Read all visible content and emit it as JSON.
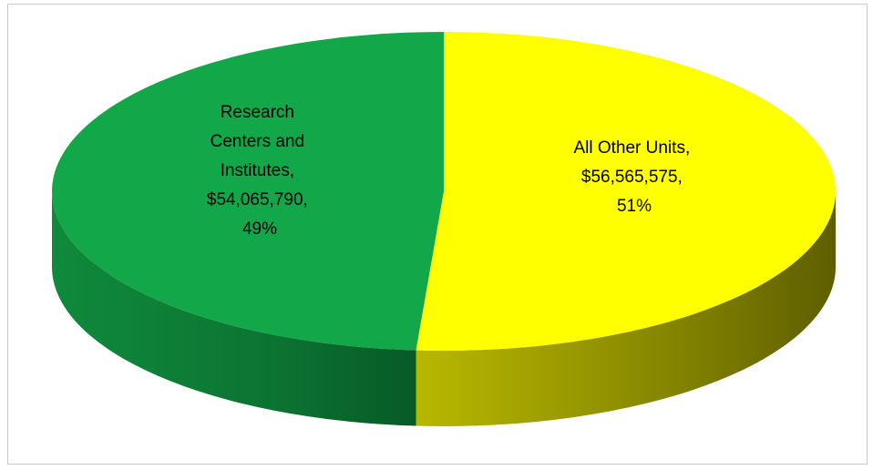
{
  "chart_data": {
    "type": "pie",
    "three_d": true,
    "title": "",
    "slices": [
      {
        "label_lines": [
          "All Other Units,",
          "$56,565,575,",
          "51%"
        ],
        "category": "All Other Units",
        "value": 56565575,
        "percent": 51,
        "color": "#ffff00",
        "side_color": "#8a8a00"
      },
      {
        "label_lines": [
          "Research",
          "Centers and",
          "Institutes,",
          "$54,065,790,",
          "49%"
        ],
        "category": "Research Centers and Institutes",
        "value": 54065790,
        "percent": 49,
        "color": "#12a84a",
        "side_color": "#0b6e30"
      }
    ],
    "legend": "none"
  }
}
